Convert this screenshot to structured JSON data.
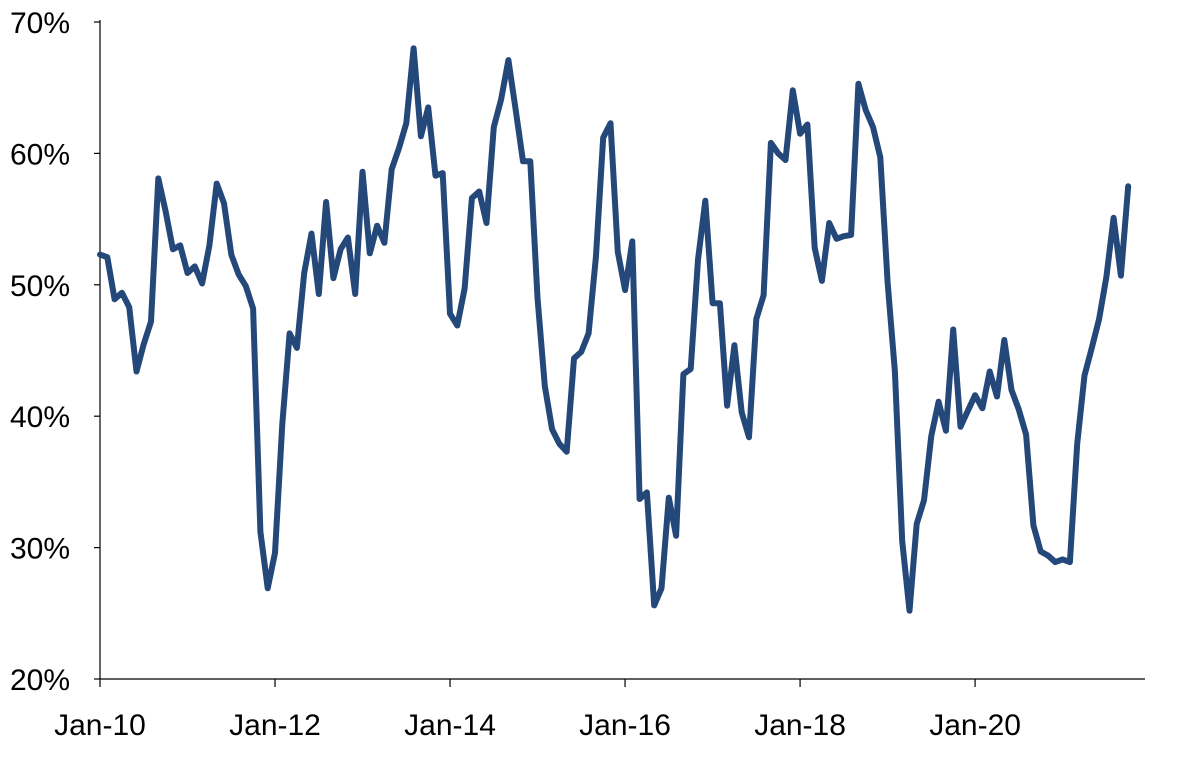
{
  "chart_data": {
    "type": "line",
    "title": "",
    "xlabel": "",
    "ylabel": "",
    "x_start": "Jan-10",
    "x_step": "month",
    "xlim": [
      "Jan-10",
      "Dec-21"
    ],
    "ylim": [
      0.2,
      0.7
    ],
    "y_ticks": [
      {
        "value": 0.2,
        "label": "20%"
      },
      {
        "value": 0.3,
        "label": "30%"
      },
      {
        "value": 0.4,
        "label": "40%"
      },
      {
        "value": 0.5,
        "label": "50%"
      },
      {
        "value": 0.6,
        "label": "60%"
      },
      {
        "value": 0.7,
        "label": "70%"
      }
    ],
    "x_ticks": [
      {
        "value": "Jan-10",
        "label": "Jan-10"
      },
      {
        "value": "Jan-12",
        "label": "Jan-12"
      },
      {
        "value": "Jan-14",
        "label": "Jan-14"
      },
      {
        "value": "Jan-16",
        "label": "Jan-16"
      },
      {
        "value": "Jan-18",
        "label": "Jan-18"
      },
      {
        "value": "Jan-20",
        "label": "Jan-20"
      }
    ],
    "grid": false,
    "legend": "none",
    "series": [
      {
        "color": "#24487A",
        "values": [
          0.523,
          0.521,
          0.489,
          0.494,
          0.483,
          0.434,
          0.455,
          0.472,
          0.581,
          0.556,
          0.527,
          0.53,
          0.509,
          0.514,
          0.501,
          0.53,
          0.577,
          0.562,
          0.523,
          0.508,
          0.499,
          0.482,
          0.312,
          0.269,
          0.296,
          0.394,
          0.463,
          0.452,
          0.509,
          0.539,
          0.493,
          0.563,
          0.505,
          0.527,
          0.536,
          0.493,
          0.586,
          0.524,
          0.545,
          0.532,
          0.588,
          0.604,
          0.623,
          0.68,
          0.613,
          0.635,
          0.583,
          0.585,
          0.478,
          0.469,
          0.497,
          0.566,
          0.571,
          0.547,
          0.62,
          0.641,
          0.671,
          0.633,
          0.594,
          0.594,
          0.49,
          0.423,
          0.39,
          0.379,
          0.373,
          0.444,
          0.449,
          0.463,
          0.521,
          0.612,
          0.623,
          0.525,
          0.496,
          0.533,
          0.337,
          0.342,
          0.256,
          0.269,
          0.338,
          0.309,
          0.432,
          0.436,
          0.519,
          0.564,
          0.486,
          0.486,
          0.408,
          0.454,
          0.403,
          0.384,
          0.474,
          0.492,
          0.608,
          0.6,
          0.595,
          0.648,
          0.615,
          0.622,
          0.528,
          0.503,
          0.547,
          0.535,
          0.537,
          0.538,
          0.653,
          0.633,
          0.62,
          0.597,
          0.502,
          0.434,
          0.305,
          0.252,
          0.318,
          0.336,
          0.385,
          0.411,
          0.389,
          0.466,
          0.392,
          0.404,
          0.416,
          0.406,
          0.434,
          0.415,
          0.458,
          0.42,
          0.405,
          0.386,
          0.317,
          0.297,
          0.294,
          0.289,
          0.291,
          0.289,
          0.379,
          0.431,
          0.452,
          0.474,
          0.506,
          0.551,
          0.507,
          0.575
        ]
      }
    ]
  }
}
